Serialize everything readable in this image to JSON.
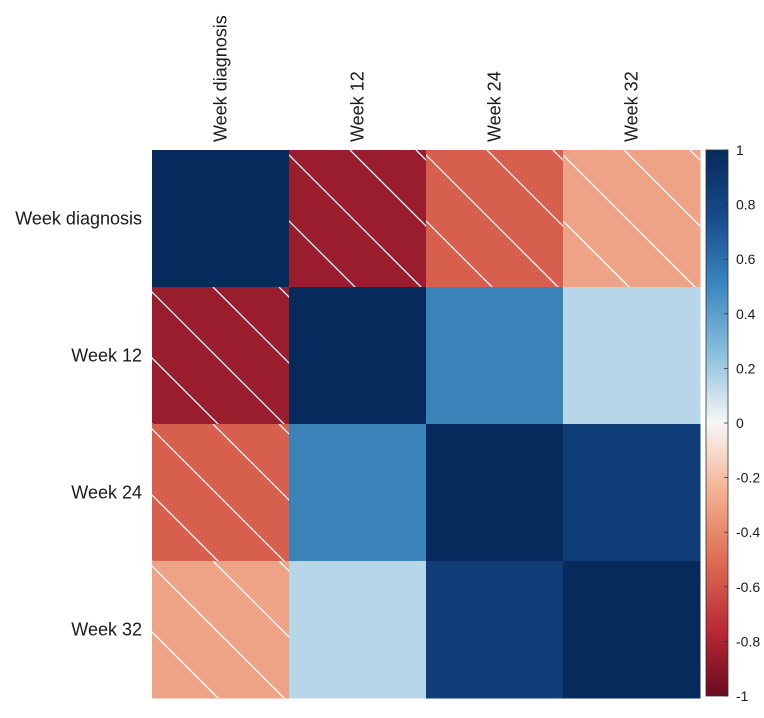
{
  "chart_data": {
    "type": "heatmap",
    "title": "",
    "variables": [
      "Week diagnosis",
      "Week 12",
      "Week 24",
      "Week 32"
    ],
    "matrix": [
      [
        1.0,
        -0.85,
        -0.5,
        -0.3
      ],
      [
        -0.85,
        1.0,
        0.55,
        0.25
      ],
      [
        -0.5,
        0.55,
        1.0,
        0.85
      ],
      [
        -0.3,
        0.25,
        0.85,
        1.0
      ]
    ],
    "negative_hatched": true,
    "colorbar": {
      "range": [
        -1,
        1
      ],
      "ticks": [
        "1",
        "0.8",
        "0.6",
        "0.4",
        "0.2",
        "0",
        "-0.2",
        "-0.4",
        "-0.6",
        "-0.8",
        "-1"
      ],
      "colors": {
        "pos_full": "#062a5c",
        "pos_mid": "#4291c3",
        "neg_full": "#680a1f",
        "neg_mid": "#d6604d",
        "zero": "#f7f7f7"
      }
    }
  }
}
